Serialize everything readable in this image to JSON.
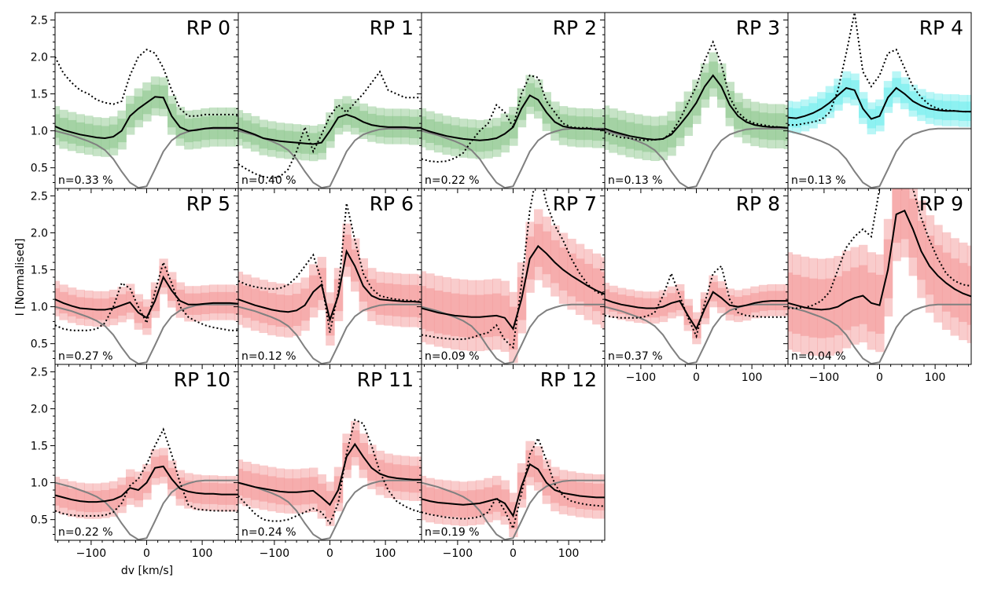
{
  "chart_data": {
    "type": "line",
    "figure": {
      "xlabel": "dv [km/s]",
      "ylabel": "I [Normalised]",
      "xlim": [
        -165,
        165
      ],
      "ylim": [
        0.22,
        2.6
      ],
      "xticks": [
        -100,
        0,
        100
      ],
      "xtick_labels": [
        "−100",
        "0",
        "100"
      ],
      "yticks": [
        0.5,
        1.0,
        1.5,
        2.0,
        2.5
      ],
      "ytick_labels": [
        "0.5",
        "1.0",
        "1.5",
        "2.0",
        "2.5"
      ],
      "grid": false
    },
    "colors": {
      "green": "#98cc98",
      "cyan": "#7fefef",
      "red": "#f4a3a3",
      "profile": "#000000",
      "reference": "#808080"
    },
    "x": [
      -165,
      -150,
      -135,
      -120,
      -105,
      -90,
      -75,
      -60,
      -45,
      -30,
      -15,
      0,
      15,
      30,
      45,
      60,
      75,
      90,
      105,
      120,
      135,
      150,
      165
    ],
    "reference_profile": [
      1.0,
      0.97,
      0.94,
      0.9,
      0.86,
      0.81,
      0.74,
      0.62,
      0.45,
      0.3,
      0.23,
      0.25,
      0.48,
      0.72,
      0.87,
      0.95,
      0.99,
      1.02,
      1.03,
      1.03,
      1.03,
      1.03,
      1.03
    ],
    "panels": [
      {
        "label": "RP 0",
        "note": "n=0.33 %",
        "color": "green",
        "mean": [
          1.06,
          1.01,
          0.98,
          0.95,
          0.93,
          0.91,
          0.9,
          0.92,
          1.0,
          1.2,
          1.3,
          1.38,
          1.46,
          1.45,
          1.2,
          1.05,
          1.0,
          1.01,
          1.03,
          1.04,
          1.04,
          1.04,
          1.04
        ],
        "max": [
          2.0,
          1.78,
          1.65,
          1.55,
          1.5,
          1.42,
          1.38,
          1.36,
          1.4,
          1.75,
          2.0,
          2.1,
          2.05,
          1.85,
          1.55,
          1.3,
          1.2,
          1.2,
          1.22,
          1.22,
          1.22,
          1.22,
          1.22
        ],
        "spread": 0.22
      },
      {
        "label": "RP 1",
        "note": "n=0.40 %",
        "color": "green",
        "mean": [
          1.03,
          0.99,
          0.95,
          0.9,
          0.88,
          0.86,
          0.85,
          0.84,
          0.83,
          0.82,
          0.84,
          1.0,
          1.18,
          1.22,
          1.18,
          1.12,
          1.08,
          1.06,
          1.05,
          1.05,
          1.05,
          1.04,
          1.04
        ],
        "max": [
          0.55,
          0.48,
          0.42,
          0.38,
          0.36,
          0.38,
          0.48,
          0.72,
          1.05,
          0.72,
          0.95,
          1.2,
          1.35,
          1.25,
          1.38,
          1.5,
          1.65,
          1.8,
          1.55,
          1.5,
          1.45,
          1.45,
          1.45
        ],
        "spread": 0.2
      },
      {
        "label": "RP 2",
        "note": "n=0.22 %",
        "color": "green",
        "mean": [
          1.03,
          0.99,
          0.96,
          0.93,
          0.91,
          0.89,
          0.88,
          0.87,
          0.88,
          0.9,
          0.96,
          1.05,
          1.3,
          1.48,
          1.42,
          1.25,
          1.12,
          1.06,
          1.04,
          1.03,
          1.03,
          1.02,
          1.02
        ],
        "max": [
          0.62,
          0.59,
          0.58,
          0.59,
          0.63,
          0.7,
          0.86,
          1.0,
          1.1,
          1.35,
          1.25,
          1.05,
          1.5,
          1.75,
          1.72,
          1.4,
          1.25,
          1.1,
          1.05,
          1.04,
          1.04,
          1.02,
          1.02
        ],
        "spread": 0.22
      },
      {
        "label": "RP 3",
        "note": "n=0.13 %",
        "color": "green",
        "mean": [
          1.03,
          0.99,
          0.96,
          0.93,
          0.91,
          0.89,
          0.88,
          0.89,
          0.95,
          1.08,
          1.22,
          1.38,
          1.6,
          1.75,
          1.6,
          1.35,
          1.2,
          1.12,
          1.08,
          1.06,
          1.05,
          1.05,
          1.04
        ],
        "max": [
          0.98,
          0.94,
          0.91,
          0.9,
          0.88,
          0.87,
          0.88,
          0.89,
          0.97,
          1.15,
          1.38,
          1.6,
          1.95,
          2.2,
          1.9,
          1.45,
          1.25,
          1.15,
          1.1,
          1.08,
          1.06,
          1.05,
          1.04
        ],
        "spread": 0.25
      },
      {
        "label": "RP 4",
        "note": "n=0.13 %",
        "color": "cyan",
        "mean": [
          1.18,
          1.17,
          1.2,
          1.24,
          1.3,
          1.38,
          1.48,
          1.58,
          1.55,
          1.3,
          1.16,
          1.2,
          1.45,
          1.58,
          1.5,
          1.4,
          1.34,
          1.3,
          1.28,
          1.27,
          1.27,
          1.26,
          1.26
        ],
        "max": [
          1.08,
          1.08,
          1.1,
          1.12,
          1.15,
          1.25,
          1.55,
          2.05,
          2.6,
          1.8,
          1.6,
          1.75,
          2.05,
          2.1,
          1.85,
          1.6,
          1.45,
          1.35,
          1.3,
          1.28,
          1.27,
          1.26,
          1.26
        ],
        "spread": 0.18
      },
      {
        "label": "RP 5",
        "note": "n=0.27 %",
        "color": "red",
        "mean": [
          1.1,
          1.05,
          1.01,
          0.98,
          0.97,
          0.96,
          0.96,
          0.98,
          1.02,
          1.06,
          0.92,
          0.85,
          1.08,
          1.4,
          1.22,
          1.08,
          1.03,
          1.03,
          1.04,
          1.05,
          1.05,
          1.05,
          1.04
        ],
        "max": [
          0.75,
          0.7,
          0.68,
          0.68,
          0.68,
          0.7,
          0.78,
          1.0,
          1.32,
          1.25,
          1.0,
          0.78,
          1.2,
          1.6,
          1.32,
          1.0,
          0.86,
          0.8,
          0.75,
          0.72,
          0.7,
          0.68,
          0.68
        ],
        "spread": 0.2
      },
      {
        "label": "RP 6",
        "note": "n=0.12 %",
        "color": "red",
        "mean": [
          1.1,
          1.06,
          1.02,
          0.99,
          0.96,
          0.94,
          0.93,
          0.95,
          1.02,
          1.2,
          1.3,
          0.82,
          1.15,
          1.75,
          1.55,
          1.28,
          1.15,
          1.1,
          1.09,
          1.08,
          1.07,
          1.07,
          1.06
        ],
        "max": [
          1.35,
          1.3,
          1.27,
          1.25,
          1.24,
          1.25,
          1.3,
          1.4,
          1.55,
          1.7,
          1.35,
          0.65,
          1.2,
          2.4,
          1.9,
          1.45,
          1.25,
          1.15,
          1.12,
          1.1,
          1.09,
          1.08,
          1.07
        ],
        "spread": 0.3
      },
      {
        "label": "RP 7",
        "note": "n=0.09 %",
        "color": "red",
        "mean": [
          0.98,
          0.95,
          0.92,
          0.9,
          0.88,
          0.87,
          0.86,
          0.86,
          0.87,
          0.88,
          0.85,
          0.7,
          1.1,
          1.65,
          1.82,
          1.72,
          1.6,
          1.5,
          1.42,
          1.35,
          1.28,
          1.22,
          1.17
        ],
        "max": [
          0.62,
          0.6,
          0.58,
          0.57,
          0.56,
          0.56,
          0.58,
          0.62,
          0.65,
          0.75,
          0.55,
          0.45,
          1.3,
          2.3,
          2.9,
          2.4,
          2.1,
          1.9,
          1.65,
          1.45,
          1.3,
          1.2,
          1.15
        ],
        "spread": 0.4
      },
      {
        "label": "RP 8",
        "note": "n=0.37 %",
        "color": "red",
        "mean": [
          1.1,
          1.06,
          1.03,
          1.01,
          0.99,
          0.98,
          0.98,
          1.0,
          1.05,
          1.08,
          0.88,
          0.7,
          0.97,
          1.2,
          1.12,
          1.02,
          1.0,
          1.02,
          1.05,
          1.07,
          1.08,
          1.08,
          1.08
        ],
        "max": [
          0.88,
          0.86,
          0.85,
          0.85,
          0.85,
          0.87,
          0.92,
          1.15,
          1.45,
          1.15,
          0.85,
          0.6,
          1.05,
          1.45,
          1.55,
          1.1,
          0.92,
          0.88,
          0.87,
          0.86,
          0.86,
          0.86,
          0.86
        ],
        "spread": 0.18
      },
      {
        "label": "RP 9",
        "note": "n=0.04 %",
        "color": "red",
        "mean": [
          1.05,
          1.02,
          0.99,
          0.97,
          0.96,
          0.97,
          1.0,
          1.07,
          1.12,
          1.15,
          1.05,
          1.02,
          1.5,
          2.25,
          2.3,
          2.05,
          1.75,
          1.55,
          1.42,
          1.32,
          1.24,
          1.18,
          1.14
        ],
        "max": [
          0.98,
          0.98,
          0.99,
          1.02,
          1.08,
          1.2,
          1.5,
          1.8,
          1.95,
          2.05,
          1.95,
          2.6,
          3.0,
          3.3,
          2.9,
          2.6,
          2.2,
          1.9,
          1.65,
          1.45,
          1.35,
          1.3,
          1.28
        ],
        "spread": 0.55
      },
      {
        "label": "RP 10",
        "note": "n=0.22 %",
        "color": "red",
        "mean": [
          0.83,
          0.8,
          0.77,
          0.75,
          0.74,
          0.74,
          0.75,
          0.77,
          0.82,
          0.93,
          0.9,
          1.0,
          1.2,
          1.22,
          1.05,
          0.92,
          0.88,
          0.86,
          0.85,
          0.85,
          0.84,
          0.84,
          0.84
        ],
        "max": [
          0.62,
          0.58,
          0.56,
          0.55,
          0.55,
          0.55,
          0.56,
          0.6,
          0.72,
          0.96,
          1.05,
          1.25,
          1.5,
          1.72,
          1.38,
          1.0,
          0.7,
          0.64,
          0.63,
          0.62,
          0.62,
          0.62,
          0.62
        ],
        "spread": 0.2
      },
      {
        "label": "RP 11",
        "note": "n=0.24 %",
        "color": "red",
        "mean": [
          1.0,
          0.97,
          0.94,
          0.92,
          0.9,
          0.88,
          0.87,
          0.87,
          0.88,
          0.89,
          0.8,
          0.7,
          0.9,
          1.35,
          1.52,
          1.35,
          1.2,
          1.12,
          1.08,
          1.06,
          1.05,
          1.04,
          1.04
        ],
        "max": [
          0.82,
          0.7,
          0.58,
          0.5,
          0.48,
          0.48,
          0.5,
          0.55,
          0.6,
          0.65,
          0.6,
          0.45,
          0.72,
          1.4,
          1.85,
          1.8,
          1.5,
          1.15,
          0.9,
          0.75,
          0.68,
          0.63,
          0.6
        ],
        "spread": 0.25
      },
      {
        "label": "RP 12",
        "note": "n=0.19 %",
        "color": "red",
        "mean": [
          0.78,
          0.75,
          0.73,
          0.72,
          0.71,
          0.7,
          0.71,
          0.72,
          0.75,
          0.78,
          0.72,
          0.55,
          0.95,
          1.25,
          1.18,
          1.0,
          0.9,
          0.86,
          0.84,
          0.82,
          0.81,
          0.8,
          0.8
        ],
        "max": [
          0.6,
          0.57,
          0.55,
          0.53,
          0.52,
          0.51,
          0.52,
          0.54,
          0.6,
          0.8,
          0.62,
          0.38,
          0.85,
          1.38,
          1.6,
          1.3,
          0.98,
          0.82,
          0.75,
          0.72,
          0.7,
          0.69,
          0.68
        ],
        "spread": 0.25
      }
    ]
  }
}
